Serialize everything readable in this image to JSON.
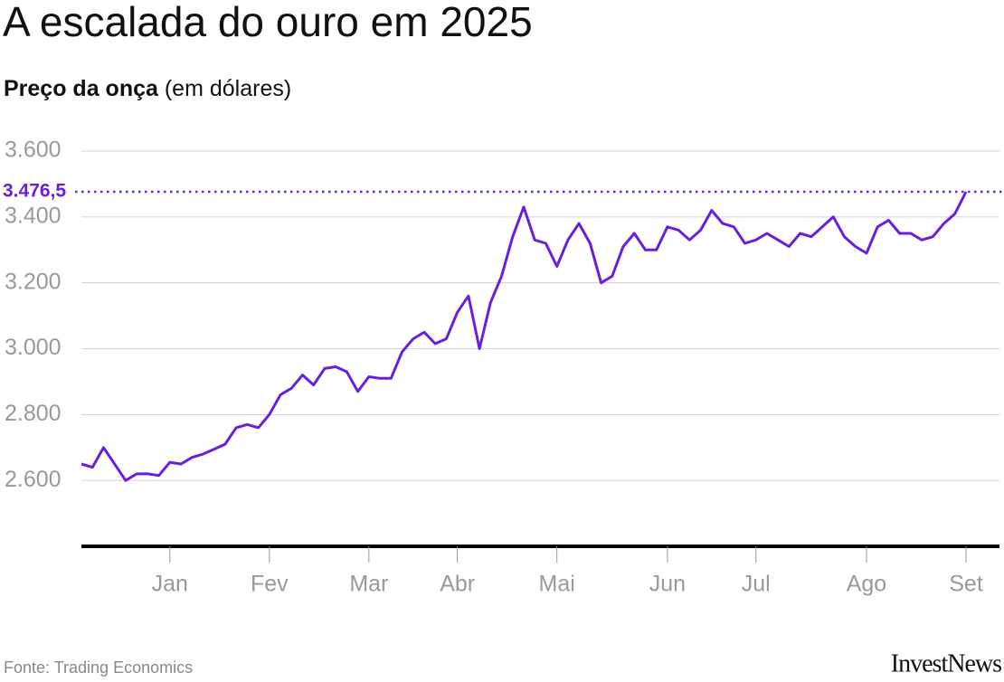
{
  "chart_data": {
    "type": "line",
    "title": "A escalada do ouro em 2025",
    "subtitle": {
      "bold": "Preço da onça",
      "rest": "(em dólares)"
    },
    "source": "Fonte: Trading Economics",
    "brand": "InvestNews",
    "categories": [
      null,
      null,
      null,
      null,
      null,
      null,
      null,
      null,
      "Jan",
      null,
      null,
      null,
      null,
      null,
      null,
      null,
      null,
      "Fev",
      null,
      null,
      null,
      null,
      null,
      null,
      null,
      null,
      "Mar",
      null,
      null,
      null,
      null,
      null,
      null,
      null,
      "Abr",
      null,
      null,
      null,
      null,
      null,
      null,
      null,
      null,
      "Mai",
      null,
      null,
      null,
      null,
      null,
      null,
      null,
      null,
      null,
      "Jun",
      null,
      null,
      null,
      null,
      null,
      null,
      null,
      "Jul",
      null,
      null,
      null,
      null,
      null,
      null,
      null,
      null,
      null,
      "Ago",
      null,
      null,
      null,
      null,
      null,
      null,
      null,
      null,
      "Set"
    ],
    "series": [
      {
        "name": "Preço da onça",
        "color": "#6a1ee0",
        "values": [
          2650,
          2640,
          2700,
          2650,
          2600,
          2620,
          2620,
          2615,
          2655,
          2650,
          2670,
          2680,
          2695,
          2710,
          2760,
          2770,
          2760,
          2800,
          2860,
          2880,
          2920,
          2890,
          2940,
          2945,
          2930,
          2870,
          2915,
          2910,
          2910,
          2990,
          3030,
          3050,
          3015,
          3030,
          3110,
          3160,
          3000,
          3140,
          3220,
          3340,
          3430,
          3330,
          3320,
          3250,
          3330,
          3380,
          3320,
          3200,
          3220,
          3310,
          3350,
          3300,
          3300,
          3370,
          3360,
          3330,
          3360,
          3420,
          3380,
          3370,
          3320,
          3330,
          3350,
          3330,
          3310,
          3350,
          3340,
          3370,
          3400,
          3340,
          3310,
          3290,
          3370,
          3390,
          3350,
          3350,
          3330,
          3340,
          3380,
          3410,
          3476.5
        ],
        "value_labels": [
          null,
          null,
          null,
          null,
          null,
          null,
          null,
          null,
          null,
          null,
          null,
          null,
          null,
          null,
          null,
          null,
          null,
          null,
          null,
          null,
          null,
          null,
          null,
          null,
          null,
          null,
          null,
          null,
          null,
          null,
          null,
          null,
          null,
          null,
          null,
          null,
          null,
          null,
          null,
          null,
          null,
          null,
          null,
          null,
          null,
          null,
          null,
          null,
          null,
          null,
          null,
          null,
          null,
          null,
          null,
          null,
          null,
          null,
          null,
          null,
          null,
          null,
          null,
          null,
          null,
          null,
          null,
          null,
          null,
          null,
          null,
          null,
          null,
          null,
          null,
          null,
          null,
          null,
          null,
          null,
          "3.476,5"
        ]
      }
    ],
    "ylim": [
      2400,
      3600
    ],
    "yticks": [
      {
        "value": 2600,
        "label": "2.600"
      },
      {
        "value": 2800,
        "label": "2.800"
      },
      {
        "value": 3000,
        "label": "3.000"
      },
      {
        "value": 3200,
        "label": "3.200"
      },
      {
        "value": 3400,
        "label": "3.400"
      },
      {
        "value": 3600,
        "label": "3.600"
      }
    ],
    "grid": true
  }
}
